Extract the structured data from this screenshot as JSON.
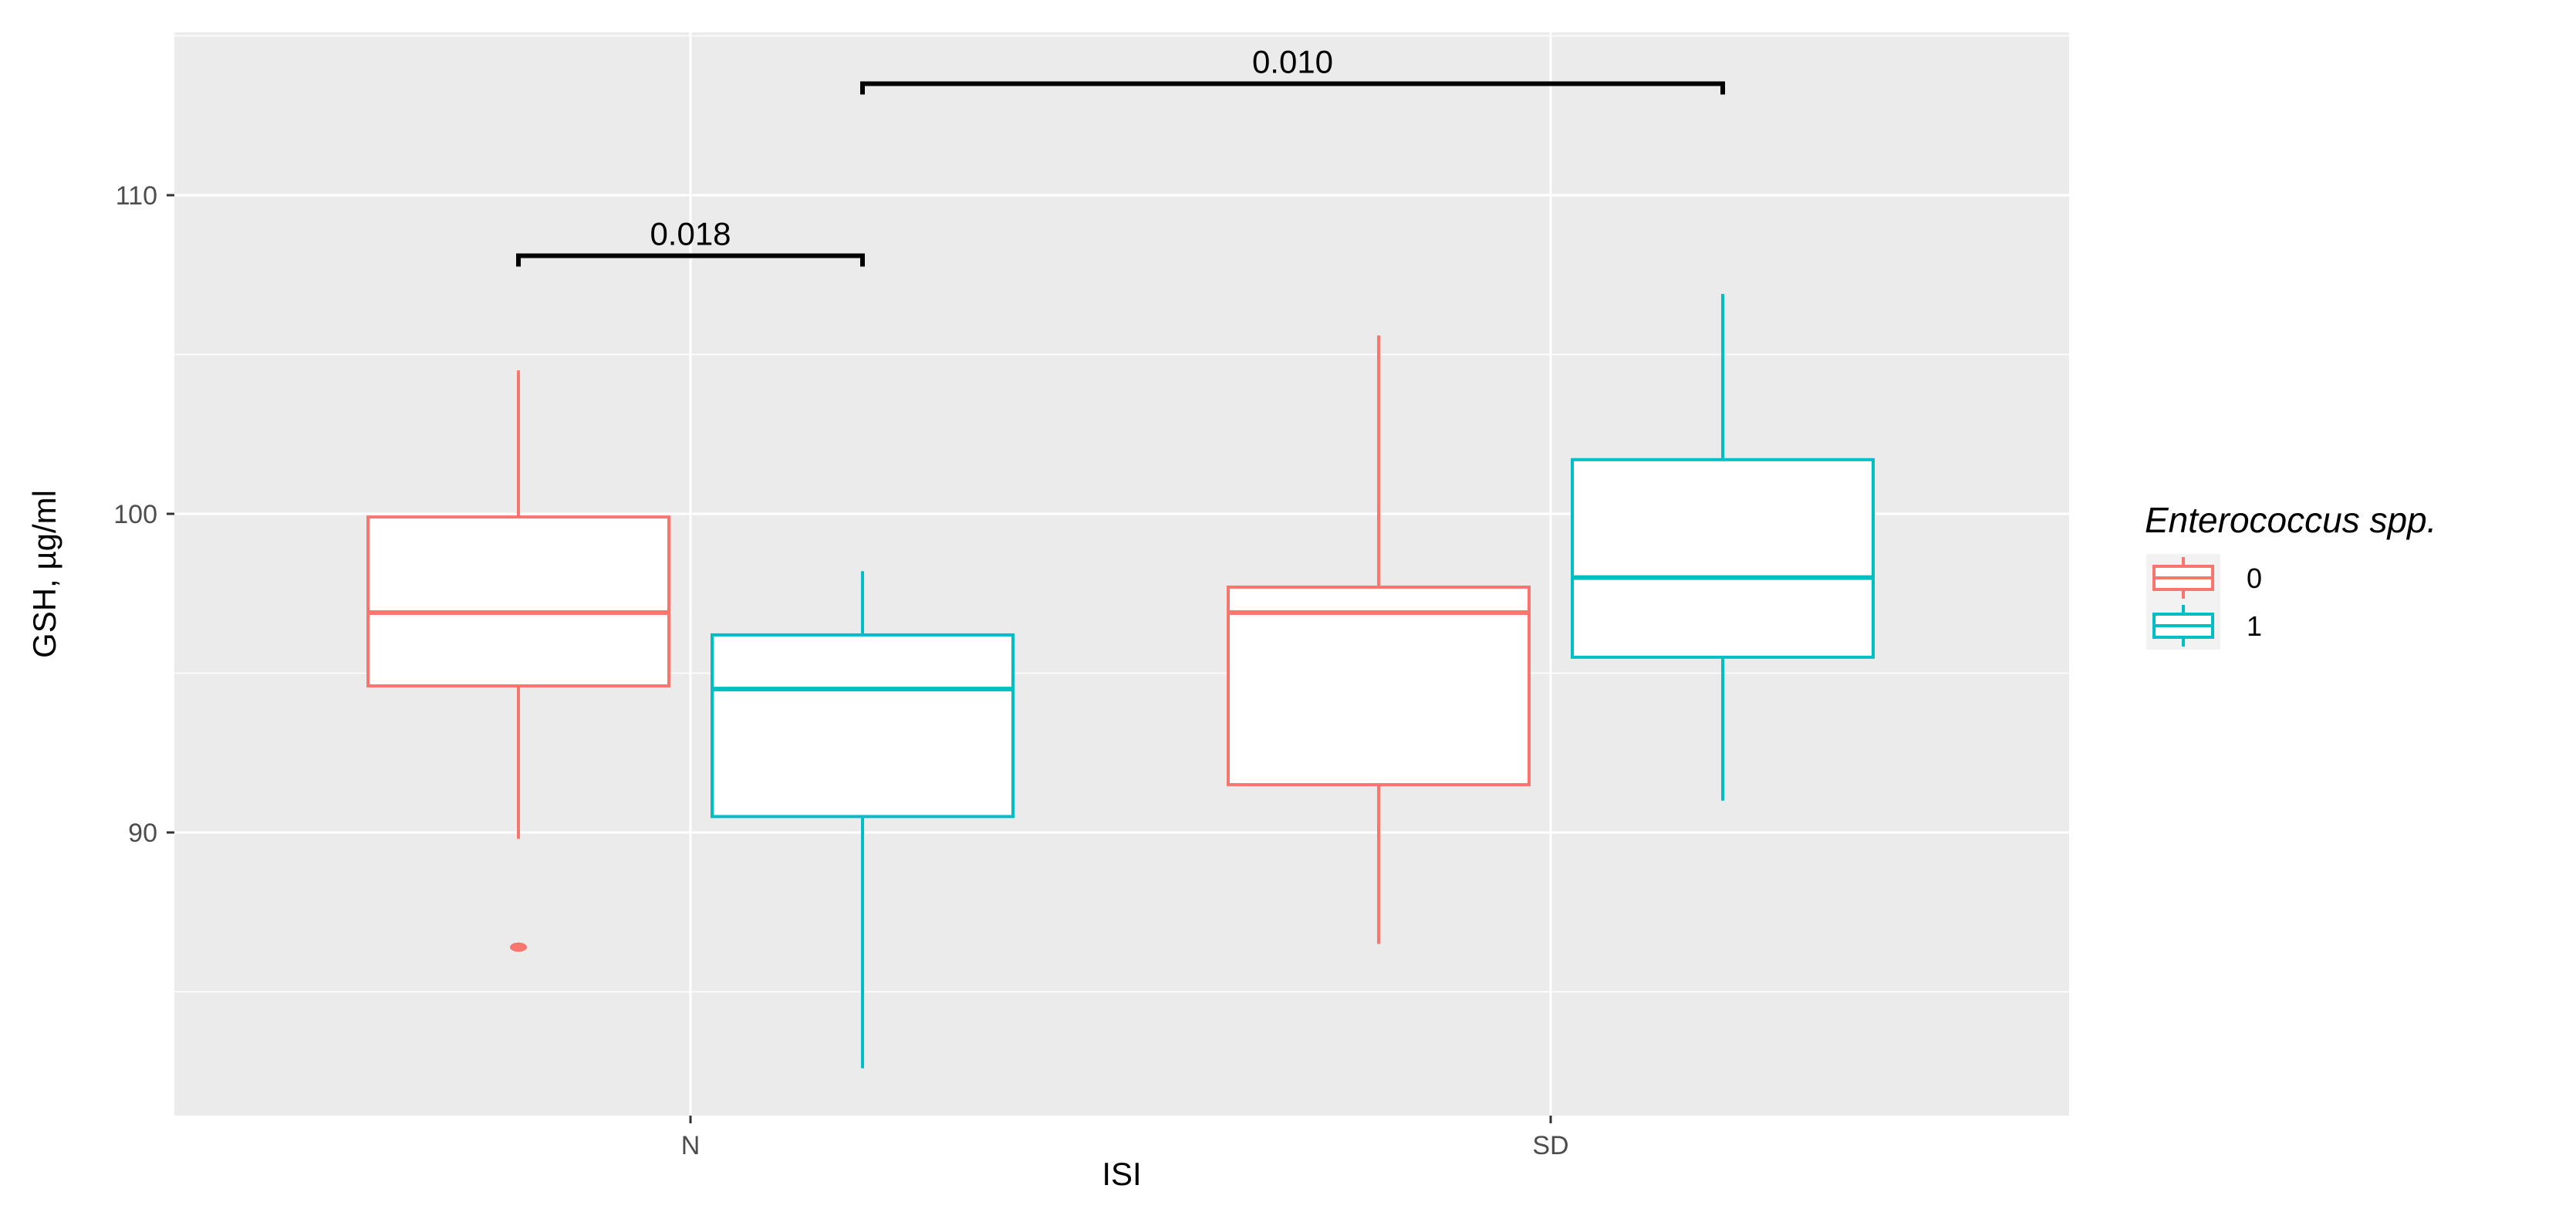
{
  "chart_data": {
    "type": "boxplot",
    "xlabel": "ISI",
    "ylabel": "GSH, µg/ml",
    "categories": [
      "N",
      "SD"
    ],
    "ylim": [
      81,
      115
    ],
    "yticks": [
      90,
      100,
      110
    ],
    "grid": true,
    "legend": {
      "title": "Enterococcus spp.",
      "placement": "right",
      "entries": [
        {
          "label": "0",
          "color": "#F8766D"
        },
        {
          "label": "1",
          "color": "#00BFC4"
        }
      ]
    },
    "series": [
      {
        "name": "0",
        "color": "#F8766D",
        "boxes": [
          {
            "category": "N",
            "whisker_low": 89.8,
            "q1": 94.6,
            "median": 96.9,
            "q3": 99.9,
            "whisker_high": 104.5,
            "outliers": [
              86.4
            ]
          },
          {
            "category": "SD",
            "whisker_low": 86.5,
            "q1": 91.5,
            "median": 96.9,
            "q3": 97.7,
            "whisker_high": 105.6,
            "outliers": []
          }
        ]
      },
      {
        "name": "1",
        "color": "#00BFC4",
        "boxes": [
          {
            "category": "N",
            "whisker_low": 82.6,
            "q1": 90.5,
            "median": 94.5,
            "q3": 96.2,
            "whisker_high": 98.2,
            "outliers": []
          },
          {
            "category": "SD",
            "whisker_low": 91.0,
            "q1": 95.5,
            "median": 98.0,
            "q3": 101.7,
            "whisker_high": 106.9,
            "outliers": []
          }
        ]
      }
    ],
    "annotations": [
      {
        "label": "0.018",
        "from": {
          "category": "N",
          "series": "0"
        },
        "to": {
          "category": "N",
          "series": "1"
        },
        "y": 108.1
      },
      {
        "label": "0.010",
        "from": {
          "category": "N",
          "series": "1"
        },
        "to": {
          "category": "SD",
          "series": "1"
        },
        "y": 113.5
      }
    ]
  }
}
